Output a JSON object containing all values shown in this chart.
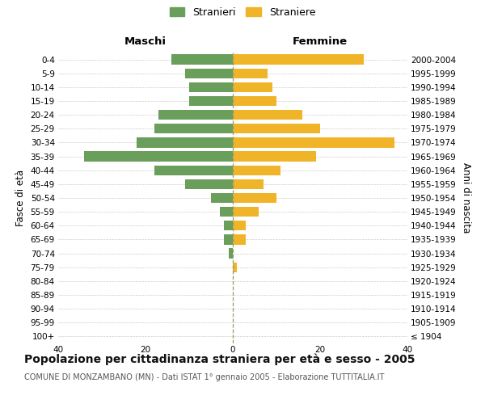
{
  "age_groups": [
    "100+",
    "95-99",
    "90-94",
    "85-89",
    "80-84",
    "75-79",
    "70-74",
    "65-69",
    "60-64",
    "55-59",
    "50-54",
    "45-49",
    "40-44",
    "35-39",
    "30-34",
    "25-29",
    "20-24",
    "15-19",
    "10-14",
    "5-9",
    "0-4"
  ],
  "birth_years": [
    "≤ 1904",
    "1905-1909",
    "1910-1914",
    "1915-1919",
    "1920-1924",
    "1925-1929",
    "1930-1934",
    "1935-1939",
    "1940-1944",
    "1945-1949",
    "1950-1954",
    "1955-1959",
    "1960-1964",
    "1965-1969",
    "1970-1974",
    "1975-1979",
    "1980-1984",
    "1985-1989",
    "1990-1994",
    "1995-1999",
    "2000-2004"
  ],
  "maschi": [
    0,
    0,
    0,
    0,
    0,
    0,
    1,
    2,
    2,
    3,
    5,
    11,
    18,
    34,
    22,
    18,
    17,
    10,
    10,
    11,
    14
  ],
  "femmine": [
    0,
    0,
    0,
    0,
    0,
    1,
    0,
    3,
    3,
    6,
    10,
    7,
    11,
    19,
    37,
    20,
    16,
    10,
    9,
    8,
    30
  ],
  "male_color": "#6a9e5b",
  "female_color": "#f0b429",
  "background_color": "#ffffff",
  "grid_color": "#cccccc",
  "center_line_color": "#999966",
  "title": "Popolazione per cittadinanza straniera per età e sesso - 2005",
  "subtitle": "COMUNE DI MONZAMBANO (MN) - Dati ISTAT 1° gennaio 2005 - Elaborazione TUTTITALIA.IT",
  "left_header": "Maschi",
  "right_header": "Femmine",
  "ylabel_left": "Fasce di età",
  "ylabel_right": "Anni di nascita",
  "legend_male": "Stranieri",
  "legend_female": "Straniere",
  "xlim": 40,
  "bar_height": 0.72
}
